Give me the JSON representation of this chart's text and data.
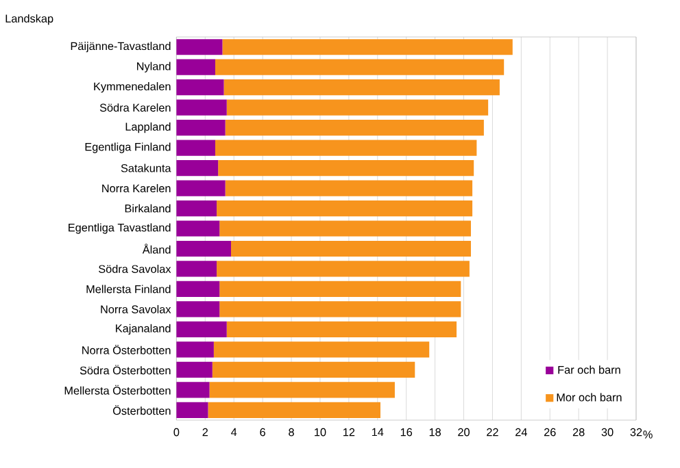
{
  "chart_data": {
    "type": "bar",
    "orientation": "horizontal",
    "stacked": true,
    "ylabel": "Landskap",
    "xlabel": "%",
    "categories": [
      "Päijänne-Tavastland",
      "Nyland",
      "Kymmenedalen",
      "Södra Karelen",
      "Lappland",
      "Egentliga Finland",
      "Satakunta",
      "Norra Karelen",
      "Birkaland",
      "Egentliga Tavastland",
      "Åland",
      "Södra Savolax",
      "Mellersta Finland",
      "Norra Savolax",
      "Kajanaland",
      "Norra Österbotten",
      "Södra Österbotten",
      "Mellersta Österbotten",
      "Österbotten"
    ],
    "series": [
      {
        "name": "Far och barn",
        "color": "#990099",
        "values": [
          3.2,
          2.7,
          3.3,
          3.5,
          3.4,
          2.7,
          2.9,
          3.4,
          2.8,
          3.0,
          3.8,
          2.8,
          3.0,
          3.0,
          3.5,
          2.6,
          2.5,
          2.3,
          2.2
        ]
      },
      {
        "name": "Mor och barn",
        "color": "#f7941d",
        "values": [
          20.2,
          20.1,
          19.2,
          18.2,
          18.0,
          18.2,
          17.8,
          17.2,
          17.8,
          17.5,
          16.7,
          17.6,
          16.8,
          16.8,
          16.0,
          15.0,
          14.1,
          12.9,
          12.0
        ]
      }
    ],
    "xlim": [
      0,
      32
    ],
    "xticks": [
      0,
      2,
      4,
      6,
      8,
      10,
      12,
      14,
      16,
      18,
      20,
      22,
      24,
      26,
      28,
      30,
      32
    ],
    "grid": "x",
    "legend": "bottom right"
  }
}
